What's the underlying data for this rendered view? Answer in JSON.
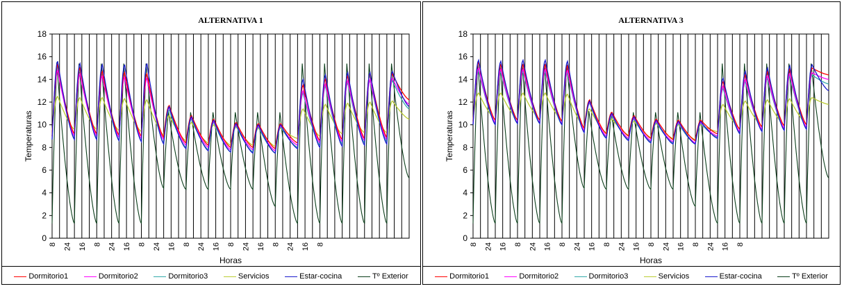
{
  "series_meta": [
    {
      "name": "Dormitorio1",
      "color": "#ff0000"
    },
    {
      "name": "Dormitorio2",
      "color": "#ff00ff"
    },
    {
      "name": "Dormitorio3",
      "color": "#33aaaa"
    },
    {
      "name": "Servicios",
      "color": "#bbcc33"
    },
    {
      "name": "Estar-cocina",
      "color": "#1a1acc"
    },
    {
      "name": "Tº Exterior",
      "color": "#0b3d1a"
    }
  ],
  "chart_data": [
    {
      "type": "line",
      "title": "ALTERNATIVA 1",
      "xlabel": "Horas",
      "ylabel": "Temperaturas",
      "ylim": [
        0,
        18
      ],
      "yticks": [
        0,
        2,
        4,
        6,
        8,
        10,
        12,
        14,
        16,
        18
      ],
      "x_tick_labels": [
        "8",
        "24",
        "16",
        "8",
        "24",
        "16",
        "8",
        "24",
        "16",
        "8",
        "24",
        "16",
        "8",
        "24",
        "16",
        "8",
        "24",
        "16",
        "8"
      ],
      "grid": "vertical lines at each hour tick, no horizontal gridlines",
      "legend": "bottom",
      "days": [
        {
          "exterior_max": 15.5,
          "exterior_min": 1.3,
          "indoor_max": [
            15.3,
            14.8,
            15.0,
            12.5,
            15.6
          ],
          "indoor_min": [
            9.0,
            8.9,
            8.7,
            9.5,
            8.7
          ]
        },
        {
          "exterior_max": 15.4,
          "exterior_min": 1.3,
          "indoor_max": [
            15.0,
            14.5,
            14.8,
            12.4,
            15.4
          ],
          "indoor_min": [
            9.2,
            9.0,
            8.8,
            9.6,
            8.7
          ]
        },
        {
          "exterior_max": 15.4,
          "exterior_min": 1.3,
          "indoor_max": [
            14.7,
            14.3,
            14.6,
            12.4,
            15.3
          ],
          "indoor_min": [
            9.2,
            9.0,
            8.8,
            9.6,
            8.7
          ]
        },
        {
          "exterior_max": 15.4,
          "exterior_min": 1.3,
          "indoor_max": [
            14.6,
            14.2,
            14.5,
            12.3,
            15.3
          ],
          "indoor_min": [
            9.1,
            8.9,
            8.6,
            9.5,
            8.6
          ]
        },
        {
          "exterior_max": 15.4,
          "exterior_min": 1.3,
          "indoor_max": [
            14.5,
            14.1,
            14.4,
            12.2,
            15.4
          ],
          "indoor_min": [
            9.0,
            8.8,
            8.6,
            9.4,
            8.5
          ]
        },
        {
          "exterior_max": 11.2,
          "exterior_min": 4.4,
          "indoor_max": [
            11.7,
            11.5,
            11.3,
            10.8,
            11.6
          ],
          "indoor_min": [
            8.9,
            8.7,
            8.4,
            9.1,
            8.3
          ]
        },
        {
          "exterior_max": 11.1,
          "exterior_min": 4.3,
          "indoor_max": [
            10.8,
            10.6,
            10.5,
            10.2,
            10.7
          ],
          "indoor_min": [
            8.4,
            8.2,
            8.0,
            8.6,
            7.9
          ]
        },
        {
          "exterior_max": 11.1,
          "exterior_min": 4.3,
          "indoor_max": [
            10.5,
            10.3,
            10.2,
            10.0,
            10.4
          ],
          "indoor_min": [
            8.2,
            8.0,
            7.8,
            8.4,
            7.7
          ]
        },
        {
          "exterior_max": 11.1,
          "exterior_min": 4.3,
          "indoor_max": [
            10.2,
            10.0,
            9.9,
            9.8,
            10.1
          ],
          "indoor_min": [
            8.0,
            7.8,
            7.6,
            8.2,
            7.6
          ]
        },
        {
          "exterior_max": 11.1,
          "exterior_min": 4.3,
          "indoor_max": [
            10.1,
            9.9,
            9.8,
            9.7,
            10.0
          ],
          "indoor_min": [
            8.0,
            7.8,
            7.6,
            8.2,
            7.5
          ]
        },
        {
          "exterior_max": 11.1,
          "exterior_min": 2.8,
          "indoor_max": [
            10.1,
            9.9,
            9.8,
            9.7,
            10.0
          ],
          "indoor_min": [
            7.9,
            7.7,
            7.5,
            8.1,
            7.5
          ]
        },
        {
          "exterior_max": 15.4,
          "exterior_min": 1.3,
          "indoor_max": [
            13.5,
            13.0,
            12.8,
            11.4,
            14.0
          ],
          "indoor_min": [
            8.4,
            8.2,
            8.0,
            8.8,
            7.9
          ]
        },
        {
          "exterior_max": 15.4,
          "exterior_min": 1.3,
          "indoor_max": [
            14.0,
            13.6,
            13.4,
            11.8,
            14.4
          ],
          "indoor_min": [
            8.6,
            8.4,
            8.2,
            9.0,
            8.0
          ]
        },
        {
          "exterior_max": 15.4,
          "exterior_min": 1.3,
          "indoor_max": [
            14.3,
            13.9,
            13.7,
            11.9,
            14.6
          ],
          "indoor_min": [
            8.7,
            8.5,
            8.3,
            9.2,
            8.1
          ]
        },
        {
          "exterior_max": 15.4,
          "exterior_min": 1.3,
          "indoor_max": [
            14.5,
            14.0,
            13.9,
            12.0,
            14.6
          ],
          "indoor_min": [
            8.8,
            8.6,
            8.4,
            9.3,
            8.2
          ]
        },
        {
          "exterior_max": 15.4,
          "exterior_min": 1.3,
          "indoor_max": [
            14.5,
            14.1,
            13.9,
            12.1,
            14.7
          ],
          "indoor_min": [
            8.9,
            8.7,
            8.5,
            9.3,
            8.3
          ]
        }
      ],
      "end_values": [
        12.2,
        11.8,
        11.4,
        10.5,
        11.6,
        5.3
      ]
    },
    {
      "type": "line",
      "title": "ALTERNATIVA 3",
      "xlabel": "Horas",
      "ylabel": "Temperaturas",
      "ylim": [
        0,
        18
      ],
      "yticks": [
        0,
        2,
        4,
        6,
        8,
        10,
        12,
        14,
        16,
        18
      ],
      "x_tick_labels": [
        "8",
        "24",
        "16",
        "8",
        "24",
        "16",
        "8",
        "24",
        "16",
        "8",
        "24",
        "16",
        "8",
        "24",
        "16",
        "8",
        "24",
        "16",
        "8"
      ],
      "grid": "vertical lines at each hour tick, no horizontal gridlines",
      "legend": "bottom",
      "days": [
        {
          "exterior_max": 15.5,
          "exterior_min": 1.3,
          "indoor_max": [
            15.5,
            15.0,
            14.8,
            12.8,
            15.7
          ],
          "indoor_min": [
            10.3,
            10.1,
            10.0,
            10.4,
            10.0
          ]
        },
        {
          "exterior_max": 15.4,
          "exterior_min": 1.3,
          "indoor_max": [
            15.3,
            14.9,
            14.7,
            12.8,
            15.6
          ],
          "indoor_min": [
            10.4,
            10.2,
            10.1,
            10.5,
            10.0
          ]
        },
        {
          "exterior_max": 15.4,
          "exterior_min": 1.3,
          "indoor_max": [
            15.3,
            14.9,
            14.7,
            12.8,
            15.7
          ],
          "indoor_min": [
            10.4,
            10.2,
            10.1,
            10.5,
            10.1
          ]
        },
        {
          "exterior_max": 15.4,
          "exterior_min": 1.3,
          "indoor_max": [
            15.3,
            14.9,
            14.7,
            12.8,
            15.7
          ],
          "indoor_min": [
            10.4,
            10.2,
            10.1,
            10.5,
            10.1
          ]
        },
        {
          "exterior_max": 15.4,
          "exterior_min": 1.3,
          "indoor_max": [
            15.2,
            14.8,
            14.6,
            12.7,
            15.6
          ],
          "indoor_min": [
            10.3,
            10.1,
            10.0,
            10.4,
            10.0
          ]
        },
        {
          "exterior_max": 11.2,
          "exterior_min": 4.4,
          "indoor_max": [
            12.2,
            12.0,
            11.9,
            11.4,
            12.1
          ],
          "indoor_min": [
            9.7,
            9.5,
            9.4,
            9.8,
            9.3
          ]
        },
        {
          "exterior_max": 11.1,
          "exterior_min": 4.3,
          "indoor_max": [
            11.1,
            10.9,
            10.8,
            10.5,
            11.0
          ],
          "indoor_min": [
            9.2,
            9.0,
            8.9,
            9.3,
            8.8
          ]
        },
        {
          "exterior_max": 11.1,
          "exterior_min": 4.3,
          "indoor_max": [
            10.8,
            10.6,
            10.5,
            10.3,
            10.7
          ],
          "indoor_min": [
            9.0,
            8.8,
            8.7,
            9.1,
            8.6
          ]
        },
        {
          "exterior_max": 11.1,
          "exterior_min": 4.3,
          "indoor_max": [
            10.5,
            10.3,
            10.2,
            10.1,
            10.4
          ],
          "indoor_min": [
            8.8,
            8.6,
            8.5,
            8.9,
            8.4
          ]
        },
        {
          "exterior_max": 11.1,
          "exterior_min": 4.3,
          "indoor_max": [
            10.4,
            10.2,
            10.1,
            10.0,
            10.3
          ],
          "indoor_min": [
            8.7,
            8.5,
            8.4,
            8.8,
            8.3
          ]
        },
        {
          "exterior_max": 11.1,
          "exterior_min": 2.8,
          "indoor_max": [
            10.4,
            10.2,
            10.1,
            10.0,
            10.3
          ],
          "indoor_min": [
            8.6,
            8.4,
            8.3,
            8.7,
            8.3
          ]
        },
        {
          "exterior_max": 15.4,
          "exterior_min": 1.3,
          "indoor_max": [
            13.8,
            13.4,
            13.2,
            11.8,
            14.1
          ],
          "indoor_min": [
            9.2,
            9.0,
            8.9,
            9.4,
            8.8
          ]
        },
        {
          "exterior_max": 15.4,
          "exterior_min": 1.3,
          "indoor_max": [
            14.4,
            14.0,
            13.8,
            12.1,
            14.7
          ],
          "indoor_min": [
            9.6,
            9.4,
            9.3,
            9.7,
            9.2
          ]
        },
        {
          "exterior_max": 15.4,
          "exterior_min": 1.3,
          "indoor_max": [
            14.7,
            14.3,
            14.1,
            12.2,
            15.0
          ],
          "indoor_min": [
            9.8,
            9.6,
            9.5,
            9.9,
            9.4
          ]
        },
        {
          "exterior_max": 15.4,
          "exterior_min": 1.3,
          "indoor_max": [
            14.9,
            14.5,
            14.3,
            12.3,
            15.2
          ],
          "indoor_min": [
            9.9,
            9.7,
            9.6,
            10.0,
            9.5
          ]
        },
        {
          "exterior_max": 15.4,
          "exterior_min": 1.3,
          "indoor_max": [
            15.0,
            14.6,
            14.4,
            12.4,
            15.3
          ],
          "indoor_min": [
            10.0,
            9.8,
            9.7,
            10.1,
            9.6
          ]
        }
      ],
      "end_values": [
        14.4,
        14.0,
        13.6,
        11.8,
        13.0,
        5.3
      ]
    }
  ]
}
